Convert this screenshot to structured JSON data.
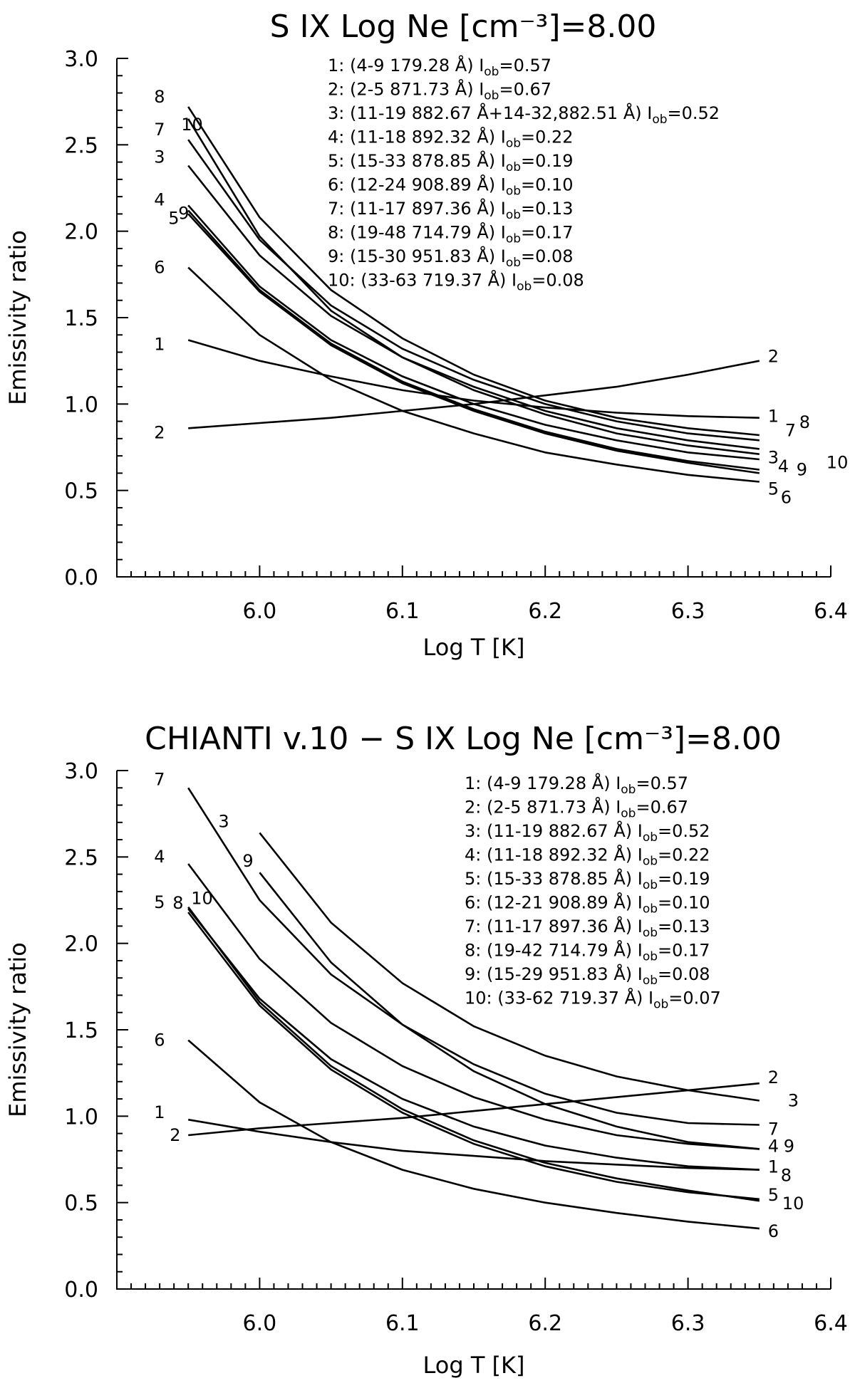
{
  "chart_data": [
    {
      "type": "line",
      "title": "S  IX  Log Ne [cm⁻³]=8.00",
      "xlabel": "Log T [K]",
      "ylabel": "Emissivity ratio",
      "xlim": [
        5.9,
        6.4
      ],
      "ylim": [
        0.0,
        3.0
      ],
      "xticks": [
        "6.0",
        "6.1",
        "6.2",
        "6.3",
        "6.4"
      ],
      "yticks": [
        "0.0",
        "0.5",
        "1.0",
        "1.5",
        "2.0",
        "2.5",
        "3.0"
      ],
      "x": [
        5.95,
        6.0,
        6.05,
        6.1,
        6.15,
        6.2,
        6.25,
        6.3,
        6.35
      ],
      "legend_position": "top-right",
      "legend": [
        "1:   (4-9  179.28 Å) I_ob=0.57",
        "2:   (2-5  871.73 Å) I_ob=0.67",
        "3:   (11-19  882.67 Å+14-32,882.51 Å) I_ob=0.52",
        "4:   (11-18  892.32 Å) I_ob=0.22",
        "5:   (15-33  878.85 Å) I_ob=0.19",
        "6:   (12-24  908.89 Å) I_ob=0.10",
        "7:   (11-17  897.36 Å) I_ob=0.13",
        "8:   (19-48  714.79 Å) I_ob=0.17",
        "9:   (15-30  951.83 Å) I_ob=0.08",
        "10:   (33-63  719.37 Å) I_ob=0.08"
      ],
      "series": [
        {
          "name": "1",
          "values": [
            1.37,
            1.25,
            1.16,
            1.08,
            1.02,
            0.98,
            0.95,
            0.93,
            0.92
          ]
        },
        {
          "name": "2",
          "values": [
            0.86,
            0.89,
            0.92,
            0.96,
            1.0,
            1.05,
            1.1,
            1.17,
            1.25
          ]
        },
        {
          "name": "3",
          "values": [
            2.38,
            1.86,
            1.51,
            1.27,
            1.1,
            0.96,
            0.86,
            0.79,
            0.74
          ]
        },
        {
          "name": "4",
          "values": [
            2.15,
            1.68,
            1.37,
            1.16,
            1.0,
            0.88,
            0.79,
            0.72,
            0.68
          ]
        },
        {
          "name": "5",
          "values": [
            2.1,
            1.65,
            1.34,
            1.12,
            0.96,
            0.83,
            0.73,
            0.66,
            0.6
          ]
        },
        {
          "name": "6",
          "values": [
            1.79,
            1.4,
            1.14,
            0.96,
            0.83,
            0.72,
            0.65,
            0.59,
            0.55
          ]
        },
        {
          "name": "7",
          "values": [
            2.53,
            1.95,
            1.57,
            1.32,
            1.14,
            1.0,
            0.9,
            0.83,
            0.79
          ]
        },
        {
          "name": "8",
          "values": [
            2.72,
            2.08,
            1.66,
            1.38,
            1.17,
            1.02,
            0.92,
            0.86,
            0.82
          ]
        },
        {
          "name": "9",
          "values": [
            2.12,
            1.66,
            1.35,
            1.13,
            0.97,
            0.84,
            0.74,
            0.67,
            0.62
          ]
        },
        {
          "name": "10",
          "values": [
            2.65,
            1.97,
            1.54,
            1.27,
            1.08,
            0.94,
            0.83,
            0.76,
            0.71
          ]
        }
      ],
      "end_labels": [
        {
          "text": "1",
          "series": "1",
          "side": "end"
        },
        {
          "text": "2",
          "series": "2",
          "side": "end"
        },
        {
          "text": "3",
          "series": "3",
          "side": "end"
        },
        {
          "text": "4",
          "series": "4",
          "side": "end"
        },
        {
          "text": "5",
          "series": "5",
          "side": "end"
        },
        {
          "text": "6",
          "series": "6",
          "side": "end"
        },
        {
          "text": "7",
          "series": "7",
          "side": "end"
        },
        {
          "text": "8",
          "series": "8",
          "side": "end"
        },
        {
          "text": "9",
          "series": "9",
          "side": "end"
        },
        {
          "text": "10",
          "series": "10",
          "side": "end"
        }
      ]
    },
    {
      "type": "line",
      "title": "CHIANTI v.10 −  S  IX  Log Ne [cm⁻³]=8.00",
      "xlabel": "Log T [K]",
      "ylabel": "Emissivity ratio",
      "xlim": [
        5.9,
        6.4
      ],
      "ylim": [
        0.0,
        3.0
      ],
      "xticks": [
        "6.0",
        "6.1",
        "6.2",
        "6.3",
        "6.4"
      ],
      "yticks": [
        "0.0",
        "0.5",
        "1.0",
        "1.5",
        "2.0",
        "2.5",
        "3.0"
      ],
      "x": [
        5.95,
        6.0,
        6.05,
        6.1,
        6.15,
        6.2,
        6.25,
        6.3,
        6.35
      ],
      "legend_position": "top-right",
      "legend": [
        "1:   (4-9  179.28 Å) I_ob=0.57",
        "2:   (2-5  871.73 Å) I_ob=0.67",
        "3:   (11-19  882.67 Å) I_ob=0.52",
        "4:   (11-18  892.32 Å) I_ob=0.22",
        "5:   (15-33  878.85 Å) I_ob=0.19",
        "6:   (12-21  908.89 Å) I_ob=0.10",
        "7:   (11-17  897.36 Å) I_ob=0.13",
        "8:   (19-42  714.79 Å) I_ob=0.17",
        "9:   (15-29  951.83 Å) I_ob=0.08",
        "10:   (33-62  719.37 Å) I_ob=0.07"
      ],
      "series": [
        {
          "name": "1",
          "values": [
            0.98,
            0.91,
            0.85,
            0.8,
            0.77,
            0.74,
            0.72,
            0.7,
            0.69
          ]
        },
        {
          "name": "2",
          "values": [
            0.89,
            0.93,
            0.96,
            0.99,
            1.03,
            1.07,
            1.11,
            1.15,
            1.19
          ]
        },
        {
          "name": "3",
          "values": [
            null,
            2.64,
            2.12,
            1.77,
            1.52,
            1.35,
            1.23,
            1.15,
            1.09
          ]
        },
        {
          "name": "4",
          "values": [
            2.46,
            1.91,
            1.54,
            1.29,
            1.11,
            0.98,
            0.89,
            0.84,
            0.81
          ]
        },
        {
          "name": "5",
          "values": [
            2.18,
            1.64,
            1.27,
            1.02,
            0.84,
            0.71,
            0.62,
            0.56,
            0.52
          ]
        },
        {
          "name": "6",
          "values": [
            1.44,
            1.08,
            0.85,
            0.69,
            0.58,
            0.5,
            0.44,
            0.39,
            0.35
          ]
        },
        {
          "name": "7",
          "values": [
            2.9,
            2.25,
            1.82,
            1.53,
            1.3,
            1.13,
            1.02,
            0.96,
            0.95
          ]
        },
        {
          "name": "8",
          "values": [
            2.2,
            1.68,
            1.33,
            1.1,
            0.94,
            0.83,
            0.76,
            0.71,
            0.69
          ]
        },
        {
          "name": "9",
          "values": [
            null,
            2.41,
            1.89,
            1.53,
            1.26,
            1.07,
            0.94,
            0.85,
            0.81
          ]
        },
        {
          "name": "10",
          "values": [
            2.21,
            1.66,
            1.29,
            1.04,
            0.86,
            0.73,
            0.64,
            0.57,
            0.51
          ]
        }
      ],
      "end_labels": [
        {
          "text": "1",
          "series": "1",
          "side": "end"
        },
        {
          "text": "2",
          "series": "2",
          "side": "end"
        },
        {
          "text": "3",
          "series": "3",
          "side": "end"
        },
        {
          "text": "4",
          "series": "4",
          "side": "end"
        },
        {
          "text": "5",
          "series": "5",
          "side": "end"
        },
        {
          "text": "6",
          "series": "6",
          "side": "end"
        },
        {
          "text": "7",
          "series": "7",
          "side": "end"
        },
        {
          "text": "8",
          "series": "8",
          "side": "end"
        },
        {
          "text": "9",
          "series": "9",
          "side": "end"
        },
        {
          "text": "10",
          "series": "10",
          "side": "end"
        }
      ]
    }
  ]
}
